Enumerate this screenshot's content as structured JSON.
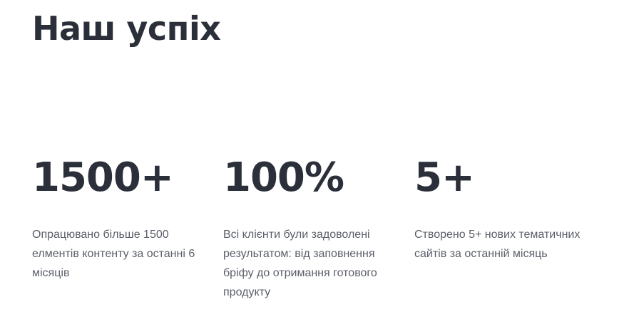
{
  "section": {
    "title": "Наш успіх"
  },
  "stats": [
    {
      "value": "1500+",
      "description": "Опрацювано більше 1500 елментів контенту за останні 6 місяців"
    },
    {
      "value": "100%",
      "description": "Всі клієнти були задоволені результатом: від заповнення бріфу до отримання готового продукту"
    },
    {
      "value": "5+",
      "description": "Створено 5+ нових тематичних сайтів за останній місяць"
    }
  ]
}
